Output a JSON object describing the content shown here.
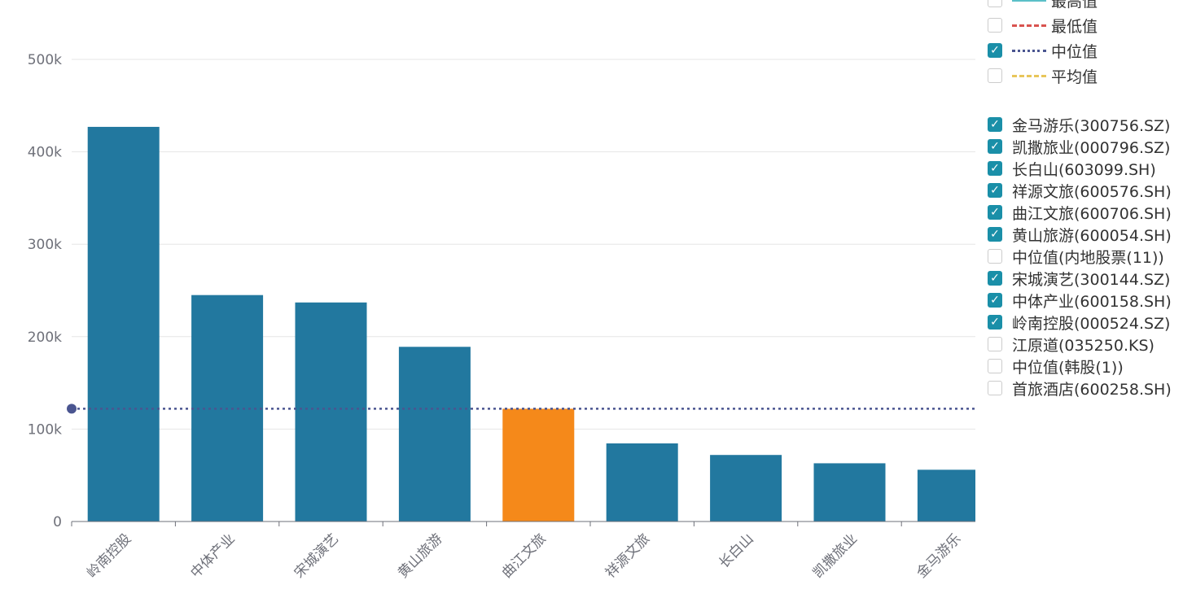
{
  "chart_data": {
    "type": "bar",
    "categories": [
      "岭南控股",
      "中体产业",
      "宋城演艺",
      "黄山旅游",
      "曲江文旅",
      "祥源文旅",
      "长白山",
      "凯撒旅业",
      "金马游乐"
    ],
    "values": [
      427000,
      245000,
      237000,
      189000,
      122000,
      84500,
      72000,
      63000,
      56000
    ],
    "highlight_category": "曲江文旅",
    "bar_color": "#22789f",
    "highlight_color": "#f5891a",
    "ylim": [
      0,
      500000
    ],
    "yticks": [
      {
        "v": 0,
        "label": "0"
      },
      {
        "v": 100000,
        "label": "100k"
      },
      {
        "v": 200000,
        "label": "200k"
      },
      {
        "v": 300000,
        "label": "300k"
      },
      {
        "v": 400000,
        "label": "400k"
      },
      {
        "v": 500000,
        "label": "500k"
      }
    ],
    "grid": true,
    "median_line": {
      "value": 122000,
      "color": "#4a5590"
    },
    "legend_placement": "right"
  },
  "legend": {
    "stats": [
      {
        "label": "最高值",
        "checked": false,
        "color": "#5bc0c8",
        "style": "solid"
      },
      {
        "label": "最低值",
        "checked": false,
        "color": "#d9534f",
        "style": "dash-dot"
      },
      {
        "label": "中位值",
        "checked": true,
        "color": "#4a5590",
        "style": "dotted"
      },
      {
        "label": "平均值",
        "checked": false,
        "color": "#e8c65a",
        "style": "dashed"
      }
    ],
    "series": [
      {
        "label": "金马游乐(300756.SZ)",
        "checked": true
      },
      {
        "label": "凯撒旅业(000796.SZ)",
        "checked": true
      },
      {
        "label": "长白山(603099.SH)",
        "checked": true
      },
      {
        "label": "祥源文旅(600576.SH)",
        "checked": true
      },
      {
        "label": "曲江文旅(600706.SH)",
        "checked": true
      },
      {
        "label": "黄山旅游(600054.SH)",
        "checked": true
      },
      {
        "label": "中位值(内地股票(11))",
        "checked": false
      },
      {
        "label": "宋城演艺(300144.SZ)",
        "checked": true
      },
      {
        "label": "中体产业(600158.SH)",
        "checked": true
      },
      {
        "label": "岭南控股(000524.SZ)",
        "checked": true
      },
      {
        "label": "江原道(035250.KS)",
        "checked": false
      },
      {
        "label": "中位值(韩股(1))",
        "checked": false
      },
      {
        "label": "首旅酒店(600258.SH)",
        "checked": false
      }
    ]
  }
}
